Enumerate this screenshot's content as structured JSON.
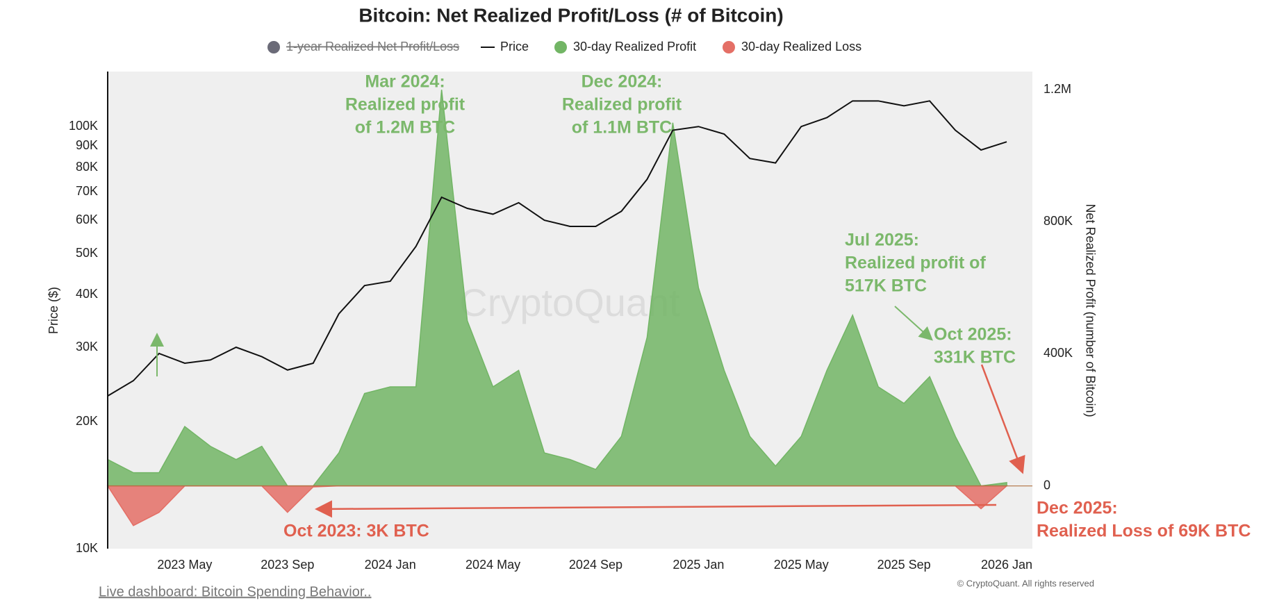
{
  "chart_data": {
    "type": "area",
    "title": "Bitcoin: Net Realized Profit/Loss (# of Bitcoin)",
    "y_label": "Price ($)",
    "y2_label": "Net Realized Profit (number of Bitcoin)",
    "watermark": "CryptoQuant",
    "grid": false,
    "log_y": true,
    "legend": "top",
    "x": [
      "2023-02",
      "2023-03",
      "2023-04",
      "2023-05",
      "2023-06",
      "2023-07",
      "2023-08",
      "2023-09",
      "2023-10",
      "2023-11",
      "2023-12",
      "2024-01",
      "2024-02",
      "2024-03",
      "2024-04",
      "2024-05",
      "2024-06",
      "2024-07",
      "2024-08",
      "2024-09",
      "2024-10",
      "2024-11",
      "2024-12",
      "2025-01",
      "2025-02",
      "2025-03",
      "2025-04",
      "2025-05",
      "2025-06",
      "2025-07",
      "2025-08",
      "2025-09",
      "2025-10",
      "2025-11",
      "2025-12",
      "2026-01"
    ],
    "xlim": [
      "2023-02",
      "2026-02"
    ],
    "xticks": [
      {
        "value": "2023-05",
        "label": "2023 May"
      },
      {
        "value": "2023-09",
        "label": "2023 Sep"
      },
      {
        "value": "2024-01",
        "label": "2024 Jan"
      },
      {
        "value": "2024-05",
        "label": "2024 May"
      },
      {
        "value": "2024-09",
        "label": "2024 Sep"
      },
      {
        "value": "2025-01",
        "label": "2025 Jan"
      },
      {
        "value": "2025-05",
        "label": "2025 May"
      },
      {
        "value": "2025-09",
        "label": "2025 Sep"
      },
      {
        "value": "2026-01",
        "label": "2026 Jan"
      }
    ],
    "ylim": [
      10000,
      135000
    ],
    "yticks": [
      {
        "value": 10000,
        "label": "10K"
      },
      {
        "value": 20000,
        "label": "20K"
      },
      {
        "value": 30000,
        "label": "30K"
      },
      {
        "value": 40000,
        "label": "40K"
      },
      {
        "value": 50000,
        "label": "50K"
      },
      {
        "value": 60000,
        "label": "60K"
      },
      {
        "value": 70000,
        "label": "70K"
      },
      {
        "value": 80000,
        "label": "80K"
      },
      {
        "value": 90000,
        "label": "90K"
      },
      {
        "value": 100000,
        "label": "100K"
      }
    ],
    "y2lim": [
      -190000,
      1255000
    ],
    "y2ticks": [
      0,
      {
        "value": 400000,
        "label": "400K"
      },
      {
        "value": 800000,
        "label": "800K"
      },
      {
        "value": 1200000,
        "label": "1.2M"
      }
    ],
    "series": [
      {
        "name": "1-year Realized Net Profit/Loss",
        "color": "#6b6b78",
        "hidden": true,
        "values": [
          null,
          null,
          null,
          null,
          null,
          null,
          null,
          null,
          null,
          null,
          null,
          null,
          null,
          null,
          null,
          null,
          null,
          null,
          null,
          null,
          null,
          null,
          null,
          null,
          null,
          null,
          null,
          null,
          null,
          null,
          null,
          null,
          null,
          null,
          null,
          null
        ]
      },
      {
        "name": "Price",
        "color": "#111111",
        "kind": "line",
        "values": [
          23000,
          25000,
          29000,
          27500,
          28000,
          30000,
          28500,
          26500,
          27500,
          36000,
          42000,
          43000,
          52000,
          68000,
          64000,
          62000,
          66000,
          60000,
          58000,
          58000,
          63000,
          75000,
          98000,
          100000,
          96000,
          84000,
          82000,
          100000,
          105000,
          115000,
          115000,
          112000,
          115000,
          98000,
          88000,
          92000
        ]
      },
      {
        "name": "30-day Realized Profit",
        "color": "#72b565",
        "kind": "area",
        "axis": "y2",
        "values": [
          80000,
          40000,
          40000,
          180000,
          120000,
          80000,
          120000,
          0,
          0,
          100000,
          280000,
          300000,
          300000,
          1200000,
          500000,
          300000,
          350000,
          100000,
          80000,
          50000,
          150000,
          450000,
          1100000,
          600000,
          350000,
          150000,
          60000,
          150000,
          350000,
          517000,
          300000,
          250000,
          331000,
          150000,
          0,
          10000
        ]
      },
      {
        "name": "30-day Realized Loss",
        "color": "#e46f66",
        "kind": "area",
        "axis": "y2",
        "values": [
          0,
          -120000,
          -80000,
          0,
          0,
          0,
          0,
          -80000,
          -3000,
          0,
          0,
          0,
          0,
          0,
          0,
          0,
          0,
          0,
          0,
          0,
          0,
          0,
          0,
          0,
          0,
          0,
          0,
          0,
          0,
          0,
          0,
          0,
          0,
          0,
          -69000,
          0
        ]
      }
    ],
    "annotations": [
      {
        "lines": [
          "Mar 2024:",
          "Realized profit",
          "of 1.2M BTC"
        ],
        "color": "#7bb86b"
      },
      {
        "lines": [
          "Dec 2024:",
          "Realized profit",
          "of 1.1M BTC"
        ],
        "color": "#7bb86b"
      },
      {
        "lines": [
          "Jul 2025:",
          "Realized profit of",
          "517K BTC"
        ],
        "color": "#7bb86b"
      },
      {
        "lines": [
          "Oct 2025:",
          "331K BTC"
        ],
        "color": "#7bb86b"
      },
      {
        "lines": [
          "Oct 2023: 3K BTC"
        ],
        "color": "#e0604f"
      },
      {
        "lines": [
          "Dec 2025:",
          "Realized Loss of 69K BTC"
        ],
        "color": "#e0604f"
      }
    ],
    "footer_link": "Live dashboard: Bitcoin Spending Behavior..",
    "copyright": "© CryptoQuant. All rights reserved"
  }
}
